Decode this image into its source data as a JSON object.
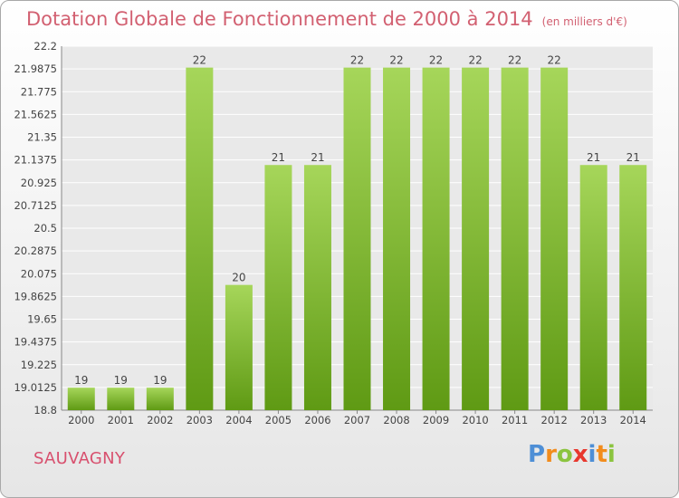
{
  "title": "Dotation Globale de Fonctionnement de 2000 à 2014",
  "unit_note": "(en milliers d'€)",
  "commune": "SAUVAGNY",
  "brand": "Proxiti",
  "colors": {
    "title": "#d26071",
    "bar_light": "#a6d65a",
    "bar_dark": "#5f9a14",
    "grid": "#ffffff",
    "plot_bg": "#e9e9e9",
    "brand_letters": [
      "#4e8fd6",
      "#f28c1c",
      "#8bc43f",
      "#e8382e",
      "#4e8fd6",
      "#f28c1c",
      "#8bc43f"
    ]
  },
  "chart_data": {
    "type": "bar",
    "title": "Dotation Globale de Fonctionnement de 2000 à 2014",
    "xlabel": "",
    "ylabel": "",
    "categories": [
      "2000",
      "2001",
      "2002",
      "2003",
      "2004",
      "2005",
      "2006",
      "2007",
      "2008",
      "2009",
      "2010",
      "2011",
      "2012",
      "2013",
      "2014"
    ],
    "values": [
      19.01,
      19.01,
      19.01,
      22.0,
      19.97,
      21.09,
      21.09,
      22.0,
      22.0,
      22.0,
      22.0,
      22.0,
      22.0,
      21.09,
      21.09
    ],
    "data_labels": [
      "19",
      "19",
      "19",
      "22",
      "20",
      "21",
      "21",
      "22",
      "22",
      "22",
      "22",
      "22",
      "22",
      "21",
      "21"
    ],
    "yticks": [
      "18.8",
      "19.0125",
      "19.225",
      "19.4375",
      "19.65",
      "19.8625",
      "20.075",
      "20.2875",
      "20.5",
      "20.7125",
      "20.925",
      "21.1375",
      "21.35",
      "21.5625",
      "21.775",
      "21.9875",
      "22.2"
    ],
    "ylim": [
      18.8,
      22.2
    ],
    "grid": true
  }
}
